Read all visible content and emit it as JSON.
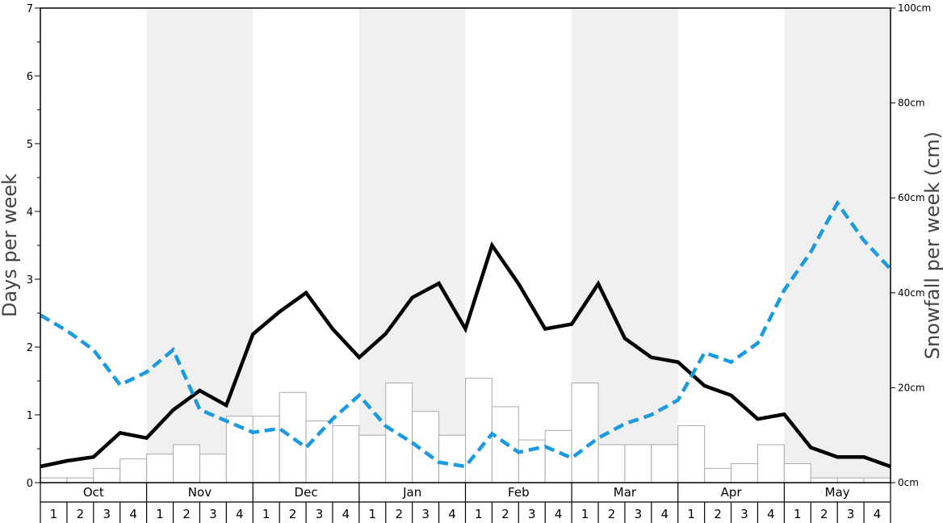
{
  "chart_data": {
    "type": "bar",
    "months": [
      "Oct",
      "Nov",
      "Dec",
      "Jan",
      "Feb",
      "Mar",
      "Apr",
      "May"
    ],
    "week_labels": [
      "1",
      "2",
      "3",
      "4"
    ],
    "y_left": {
      "label": "Days per week",
      "range": [
        0,
        7
      ],
      "ticks": [
        "0",
        "1",
        "2",
        "3",
        "4",
        "5",
        "6",
        "7"
      ]
    },
    "y_right": {
      "label": "Snowfall per week (cm)",
      "range": [
        0,
        100
      ],
      "ticks": [
        "0cm",
        "20cm",
        "40cm",
        "60cm",
        "80cm",
        "100cm"
      ]
    },
    "grid": false,
    "shaded_months": [
      "Nov",
      "Jan",
      "Mar",
      "May"
    ],
    "colors": {
      "bar_stroke": "#aaaaaa",
      "bar_fill": "#ffffff",
      "line_solid": "#000000",
      "line_dashed": "#1a9ae0",
      "shade": "#f0f0f0"
    },
    "series": [
      {
        "type": "bar",
        "axis": "left",
        "values": [
          0.07,
          0.07,
          0.21,
          0.35,
          0.42,
          0.56,
          0.42,
          0.98,
          0.98,
          1.33,
          0.91,
          0.84,
          0.7,
          1.47,
          1.05,
          0.7,
          1.54,
          1.12,
          0.63,
          0.77,
          1.47,
          0.56,
          0.56,
          0.56,
          0.84,
          0.21,
          0.28,
          0.56,
          0.28,
          0.07,
          0.07,
          0.07
        ]
      },
      {
        "type": "line",
        "style": "solid",
        "axis": "right",
        "values": [
          3.4,
          4.6,
          5.4,
          10.5,
          9.4,
          15.3,
          19.4,
          16.3,
          31.3,
          36.0,
          40.0,
          32.4,
          26.4,
          31.4,
          39.0,
          42.0,
          32.4,
          50.0,
          41.9,
          32.4,
          33.4,
          41.9,
          30.4,
          26.4,
          25.4,
          20.4,
          18.4,
          13.4,
          14.4,
          7.4,
          5.4,
          5.4,
          3.4
        ]
      },
      {
        "type": "line",
        "style": "dashed",
        "axis": "right",
        "values": [
          35.3,
          32.0,
          28.0,
          20.6,
          23.3,
          28.0,
          15.4,
          13.0,
          10.6,
          11.4,
          7.4,
          13.4,
          18.4,
          11.9,
          8.4,
          4.3,
          3.4,
          10.3,
          6.4,
          7.6,
          5.2,
          9.4,
          12.4,
          14.3,
          17.4,
          27.4,
          25.4,
          29.4,
          40.6,
          48.6,
          58.9,
          51.0,
          45.0
        ]
      }
    ]
  }
}
